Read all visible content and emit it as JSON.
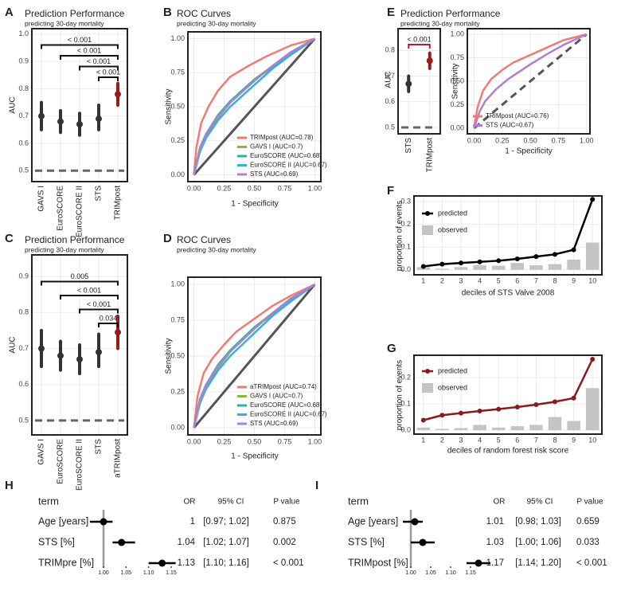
{
  "chart_data": [
    {
      "type": "pointrange",
      "panel": "A",
      "title": "Prediction Performance",
      "subtitle": "predicting 30-day mortality",
      "ylabel": "AUC",
      "categories": [
        "GAVS I",
        "EuroSCORE",
        "EuroSCORE II",
        "STS",
        "TRIMpost"
      ],
      "values": [
        0.7,
        0.68,
        0.67,
        0.69,
        0.78
      ],
      "lower": [
        0.65,
        0.64,
        0.63,
        0.65,
        0.74
      ],
      "upper": [
        0.75,
        0.72,
        0.71,
        0.74,
        0.82
      ],
      "colors": [
        "#333333",
        "#333333",
        "#333333",
        "#333333",
        "#9b1c1c"
      ],
      "p_values": [
        "< 0.001",
        "< 0.001",
        "< 0.001",
        "< 0.001",
        null
      ],
      "bracket_color": "#111111",
      "ylim": [
        0.46,
        1.02
      ],
      "yticks": [
        0.5,
        0.6,
        0.7,
        0.8,
        0.9,
        {
          "value": 1,
          "label": "1.0"
        }
      ],
      "hline": 0.5
    },
    {
      "type": "roc",
      "panel": "B",
      "title": "ROC Curves",
      "subtitle": "predicting 30-day mortality",
      "xlabel": "1 - Specificity",
      "ylabel": "Sensitivity",
      "xlim": [
        -0.05,
        1.05
      ],
      "ylim": [
        -0.05,
        1.05
      ],
      "xticks": [
        {
          "value": 0,
          "label": "0.00"
        },
        {
          "value": 0.25,
          "label": "0.25"
        },
        {
          "value": 0.5,
          "label": "0.50"
        },
        {
          "value": 0.75,
          "label": "0.75"
        },
        {
          "value": 1,
          "label": "1.00"
        }
      ],
      "yticks": [
        {
          "value": 0,
          "label": "0.00"
        },
        {
          "value": 0.25,
          "label": "0.25"
        },
        {
          "value": 0.5,
          "label": "0.50"
        },
        {
          "value": 0.75,
          "label": "0.75"
        },
        {
          "value": 1,
          "label": "1.00"
        }
      ],
      "series": [
        {
          "name": "TRIMpost (AUC=0.78)",
          "color": "#ef7b73",
          "x": [
            0,
            0.02,
            0.06,
            0.12,
            0.2,
            0.3,
            0.45,
            0.6,
            0.8,
            1
          ],
          "values": [
            0,
            0.2,
            0.38,
            0.5,
            0.62,
            0.72,
            0.8,
            0.87,
            0.95,
            1
          ]
        },
        {
          "name": "GAVS I (AUC=0.7)",
          "color": "#8fb23a",
          "x": [
            0,
            0.05,
            0.1,
            0.2,
            0.3,
            0.4,
            0.5,
            0.65,
            0.8,
            1
          ],
          "values": [
            0,
            0.18,
            0.28,
            0.42,
            0.53,
            0.62,
            0.7,
            0.8,
            0.9,
            1
          ]
        },
        {
          "name": "EuroSCORE (AUC=0.68)",
          "color": "#22b89a",
          "x": [
            0,
            0.05,
            0.1,
            0.2,
            0.3,
            0.4,
            0.5,
            0.65,
            0.8,
            1
          ],
          "values": [
            0,
            0.2,
            0.3,
            0.44,
            0.54,
            0.62,
            0.7,
            0.79,
            0.89,
            1
          ]
        },
        {
          "name": "EuroSCORE II (AUC=0.67)",
          "color": "#35b0e0",
          "x": [
            0,
            0.05,
            0.1,
            0.2,
            0.3,
            0.4,
            0.5,
            0.65,
            0.8,
            1
          ],
          "values": [
            0,
            0.17,
            0.27,
            0.4,
            0.5,
            0.58,
            0.66,
            0.78,
            0.88,
            1
          ]
        },
        {
          "name": "STS (AUC=0.69)",
          "color": "#b07fd2",
          "x": [
            0,
            0.05,
            0.1,
            0.2,
            0.3,
            0.4,
            0.5,
            0.65,
            0.8,
            1
          ],
          "values": [
            0,
            0.19,
            0.3,
            0.43,
            0.53,
            0.61,
            0.69,
            0.8,
            0.9,
            1
          ]
        }
      ]
    },
    {
      "type": "pointrange",
      "panel": "C",
      "title": "Prediction Performance",
      "subtitle": "predicting 30-day mortality",
      "ylabel": "AUC",
      "categories": [
        "GAVS I",
        "EuroSCORE",
        "EuroSCORE II",
        "STS",
        "aTRIMpost"
      ],
      "values": [
        0.7,
        0.68,
        0.67,
        0.69,
        0.745
      ],
      "lower": [
        0.65,
        0.64,
        0.63,
        0.65,
        0.7
      ],
      "upper": [
        0.75,
        0.72,
        0.71,
        0.74,
        0.79
      ],
      "colors": [
        "#333333",
        "#333333",
        "#333333",
        "#333333",
        "#9b1c1c"
      ],
      "p_values": [
        "0.005",
        "< 0.001",
        "< 0.001",
        "0.034",
        null
      ],
      "bracket_color": "#111111",
      "ylim": [
        0.46,
        0.96
      ],
      "yticks": [
        0.5,
        0.6,
        0.7,
        0.8,
        0.9
      ],
      "hline": 0.5
    },
    {
      "type": "roc",
      "panel": "D",
      "title": "ROC Curves",
      "subtitle": "predicting 30-day mortality",
      "xlabel": "1 - Specificity",
      "ylabel": "Sensitivity",
      "xlim": [
        -0.05,
        1.05
      ],
      "ylim": [
        -0.05,
        1.05
      ],
      "xticks": [
        {
          "value": 0,
          "label": "0.00"
        },
        {
          "value": 0.25,
          "label": "0.25"
        },
        {
          "value": 0.5,
          "label": "0.50"
        },
        {
          "value": 0.75,
          "label": "0.75"
        },
        {
          "value": 1,
          "label": "1.00"
        }
      ],
      "yticks": [
        {
          "value": 0,
          "label": "0.00"
        },
        {
          "value": 0.25,
          "label": "0.25"
        },
        {
          "value": 0.5,
          "label": "0.50"
        },
        {
          "value": 0.75,
          "label": "0.75"
        },
        {
          "value": 1,
          "label": "1.00"
        }
      ],
      "series": [
        {
          "name": "aTRIMpost (AUC=0.74)",
          "color": "#ef7b73",
          "x": [
            0,
            0.03,
            0.08,
            0.15,
            0.25,
            0.35,
            0.5,
            0.65,
            0.8,
            1
          ],
          "values": [
            0,
            0.22,
            0.38,
            0.48,
            0.58,
            0.67,
            0.76,
            0.85,
            0.92,
            1
          ]
        },
        {
          "name": "GAVS I (AUC=0.7)",
          "color": "#8fb23a",
          "x": [
            0,
            0.05,
            0.1,
            0.2,
            0.3,
            0.4,
            0.5,
            0.65,
            0.8,
            1
          ],
          "values": [
            0,
            0.18,
            0.28,
            0.42,
            0.53,
            0.62,
            0.7,
            0.8,
            0.9,
            1
          ]
        },
        {
          "name": "EuroSCORE (AUC=0.68)",
          "color": "#22b89a",
          "x": [
            0,
            0.05,
            0.1,
            0.2,
            0.3,
            0.4,
            0.5,
            0.65,
            0.8,
            1
          ],
          "values": [
            0,
            0.2,
            0.3,
            0.44,
            0.54,
            0.62,
            0.7,
            0.79,
            0.89,
            1
          ]
        },
        {
          "name": "EuroSCORE II (AUC=0.67)",
          "color": "#35b0e0",
          "x": [
            0,
            0.05,
            0.1,
            0.2,
            0.3,
            0.4,
            0.5,
            0.65,
            0.8,
            1
          ],
          "values": [
            0,
            0.17,
            0.27,
            0.4,
            0.5,
            0.58,
            0.66,
            0.78,
            0.88,
            1
          ]
        },
        {
          "name": "STS (AUC=0.69)",
          "color": "#b07fd2",
          "x": [
            0,
            0.05,
            0.1,
            0.2,
            0.3,
            0.4,
            0.5,
            0.65,
            0.8,
            1
          ],
          "values": [
            0,
            0.19,
            0.3,
            0.43,
            0.53,
            0.61,
            0.69,
            0.8,
            0.9,
            1
          ]
        }
      ]
    },
    {
      "type": "pointrange",
      "panel": "E",
      "title": "Prediction Performance",
      "subtitle": "predicting 30-day mortality",
      "ylabel": "AUC",
      "categories": [
        "STS",
        "TRIMpost"
      ],
      "values": [
        0.67,
        0.76
      ],
      "lower": [
        0.64,
        0.73
      ],
      "upper": [
        0.7,
        0.79
      ],
      "colors": [
        "#333333",
        "#9b1c1c"
      ],
      "p_values": [
        "< 0.001",
        null
      ],
      "bracket_color": "#b3202a",
      "ylim": [
        0.475,
        0.885
      ],
      "yticks": [
        0.5,
        0.6,
        0.7,
        0.8
      ],
      "hline": 0.5
    },
    {
      "type": "roc",
      "xlabel": "1 - Specificity",
      "ylabel": "Sensitivity",
      "xlim": [
        -0.06,
        1.03
      ],
      "ylim": [
        -0.06,
        1.06
      ],
      "xticks": [
        {
          "value": 0,
          "label": "0.00"
        },
        {
          "value": 0.25,
          "label": "0.25"
        },
        {
          "value": 0.5,
          "label": "0.50"
        },
        {
          "value": 0.75,
          "label": "0.75"
        },
        {
          "value": 1,
          "label": "1.00"
        }
      ],
      "yticks": [
        {
          "value": 0,
          "label": "0.00"
        },
        {
          "value": 0.25,
          "label": "0.25"
        },
        {
          "value": 0.5,
          "label": "0.50"
        },
        {
          "value": 0.75,
          "label": "0.75"
        },
        {
          "value": 1,
          "label": "1.00"
        }
      ],
      "series": [
        {
          "name": "TRIMpost (AUC=0.76)",
          "color": "#ef7b73",
          "x": [
            0,
            0.03,
            0.08,
            0.15,
            0.25,
            0.35,
            0.5,
            0.65,
            0.8,
            1
          ],
          "values": [
            0,
            0.22,
            0.4,
            0.52,
            0.62,
            0.7,
            0.78,
            0.86,
            0.94,
            1
          ]
        },
        {
          "name": "STS (AUC=0.67)",
          "color": "#b07fd2",
          "x": [
            0,
            0.05,
            0.1,
            0.2,
            0.3,
            0.4,
            0.5,
            0.65,
            0.8,
            1
          ],
          "values": [
            0,
            0.18,
            0.29,
            0.42,
            0.52,
            0.6,
            0.68,
            0.79,
            0.89,
            1
          ]
        }
      ]
    },
    {
      "type": "linebar",
      "panel": "F",
      "xlabel": "deciles of STS Valve 2008",
      "ylabel": "proportion of events",
      "categories": [
        "1",
        "2",
        "3",
        "4",
        "5",
        "6",
        "7",
        "8",
        "9",
        "10"
      ],
      "ylim": [
        -0.022,
        0.325
      ],
      "yticks": [
        {
          "value": 0,
          "label": "0.0"
        },
        0.1,
        0.2,
        0.3
      ],
      "series": [
        {
          "name": "predicted",
          "color": "#000000",
          "values": [
            0.015,
            0.025,
            0.03,
            0.035,
            0.04,
            0.048,
            0.058,
            0.068,
            0.088,
            0.31
          ]
        },
        {
          "name": "observed",
          "color": "#c4c4c4",
          "values": [
            0.012,
            0.005,
            0.012,
            0.02,
            0.018,
            0.03,
            0.02,
            0.025,
            0.045,
            0.12
          ]
        }
      ]
    },
    {
      "type": "linebar",
      "panel": "G",
      "xlabel": "deciles of random forest risk score",
      "ylabel": "proportion of events",
      "categories": [
        "1",
        "2",
        "3",
        "4",
        "5",
        "6",
        "7",
        "8",
        "9",
        "10"
      ],
      "ylim": [
        -0.015,
        0.285
      ],
      "yticks": [
        {
          "value": 0,
          "label": "0.0"
        },
        0.1,
        0.2
      ],
      "series": [
        {
          "name": "predicted",
          "color": "#8b1a1a",
          "values": [
            0.038,
            0.057,
            0.065,
            0.073,
            0.08,
            0.088,
            0.097,
            0.108,
            0.122,
            0.27
          ]
        },
        {
          "name": "observed",
          "color": "#c4c4c4",
          "values": [
            0.01,
            0.005,
            0.008,
            0.02,
            0.01,
            0.015,
            0.02,
            0.05,
            0.035,
            0.16
          ]
        }
      ]
    },
    {
      "type": "forest",
      "panel": "H",
      "columns": [
        "term",
        "OR",
        "95% CI",
        "P value"
      ],
      "terms": [
        "Age [years]",
        "STS [%]",
        "TRIMpre [%]"
      ],
      "values": [
        1,
        1.04,
        1.13
      ],
      "lower": [
        0.97,
        1.02,
        1.1
      ],
      "upper": [
        1.02,
        1.07,
        1.16
      ],
      "ci_labels": [
        "[0.97; 1.02]",
        "[1.02; 1.07]",
        "[1.10; 1.16]"
      ],
      "p_labels": [
        "0.875",
        "0.002",
        "< 0.001"
      ],
      "xlim": [
        0.95,
        1.2
      ],
      "xticks": [
        {
          "value": 1,
          "label": "1.00"
        },
        1.05,
        {
          "value": 1.1,
          "label": "1.10"
        },
        1.15
      ],
      "vline": 1
    },
    {
      "type": "forest",
      "panel": "I",
      "columns": [
        "term",
        "OR",
        "95% CI",
        "P value"
      ],
      "terms": [
        "Age [years]",
        "STS [%]",
        "TRIMpost [%]"
      ],
      "values": [
        1.01,
        1.03,
        1.17
      ],
      "lower": [
        0.98,
        1.0,
        1.14
      ],
      "upper": [
        1.03,
        1.06,
        1.2
      ],
      "ci_labels": [
        "[0.98; 1.03]",
        "[1.00; 1.06]",
        "[1.14; 1.20]"
      ],
      "p_labels": [
        "0.659",
        "0.033",
        "< 0.001"
      ],
      "xlim": [
        0.95,
        1.2
      ],
      "xticks": [
        {
          "value": 1,
          "label": "1.00"
        },
        1.05,
        {
          "value": 1.1,
          "label": "1.10"
        },
        1.15
      ],
      "vline": 1
    }
  ]
}
